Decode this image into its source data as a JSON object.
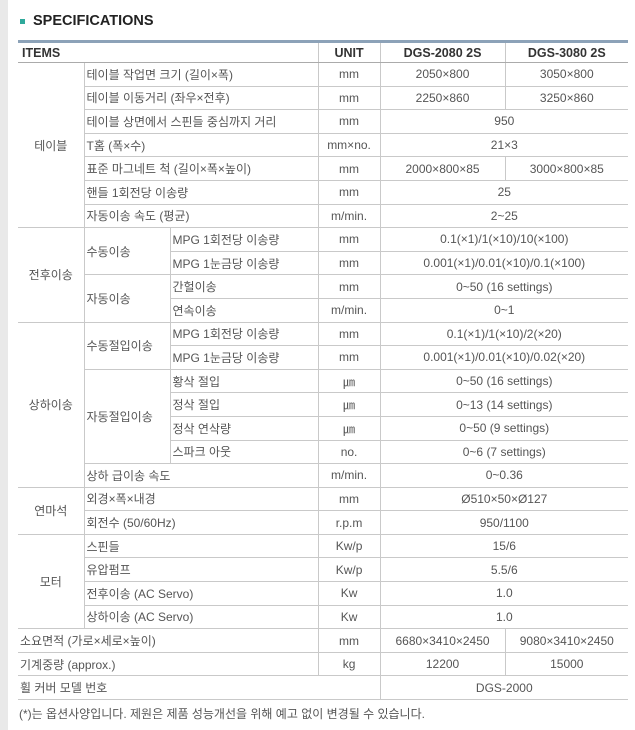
{
  "page": {
    "title": "SPECIFICATIONS",
    "footnote": "(*)는 옵션사양입니다. 제원은 제품 성능개선을 위해 예고 없이 변경될 수 있습니다.",
    "colors": {
      "bullet": "#2fa99b",
      "rule": "#8ca2b8",
      "border": "#c9c9c9",
      "text": "#555555"
    }
  },
  "table": {
    "header": {
      "items": "ITEMS",
      "unit": "UNIT",
      "model1": "DGS-2080 2S",
      "model2": "DGS-3080 2S"
    },
    "rows": [
      {
        "cells": [
          {
            "t": "테이블",
            "c": "g",
            "rs": 7
          },
          {
            "t": "테이블 작업면 크기 (길이×폭)",
            "c": "i",
            "cs": 2
          },
          {
            "t": "mm",
            "c": "u"
          },
          {
            "t": "2050×800",
            "c": "v"
          },
          {
            "t": "3050×800",
            "c": "v"
          }
        ]
      },
      {
        "cells": [
          {
            "t": "테이블 이동거리 (좌우×전후)",
            "c": "i",
            "cs": 2
          },
          {
            "t": "mm",
            "c": "u"
          },
          {
            "t": "2250×860",
            "c": "v"
          },
          {
            "t": "3250×860",
            "c": "v"
          }
        ]
      },
      {
        "cells": [
          {
            "t": "테이블 상면에서 스핀들 중심까지 거리",
            "c": "i",
            "cs": 2
          },
          {
            "t": "mm",
            "c": "u"
          },
          {
            "t": "950",
            "c": "v",
            "cs": 2
          }
        ]
      },
      {
        "cells": [
          {
            "t": "T홈 (폭×수)",
            "c": "i",
            "cs": 2
          },
          {
            "t": "mm×no.",
            "c": "u"
          },
          {
            "t": "21×3",
            "c": "v",
            "cs": 2
          }
        ]
      },
      {
        "cells": [
          {
            "t": "표준 마그네트 척 (길이×폭×높이)",
            "c": "i",
            "cs": 2
          },
          {
            "t": "mm",
            "c": "u"
          },
          {
            "t": "2000×800×85",
            "c": "v"
          },
          {
            "t": "3000×800×85",
            "c": "v"
          }
        ]
      },
      {
        "cells": [
          {
            "t": "핸들 1회전당 이송량",
            "c": "i",
            "cs": 2
          },
          {
            "t": "mm",
            "c": "u"
          },
          {
            "t": "25",
            "c": "v",
            "cs": 2
          }
        ]
      },
      {
        "cells": [
          {
            "t": "자동이송 속도 (평균)",
            "c": "i",
            "cs": 2
          },
          {
            "t": "m/min.",
            "c": "u"
          },
          {
            "t": "2~25",
            "c": "v",
            "cs": 2
          }
        ]
      },
      {
        "cells": [
          {
            "t": "전후이송",
            "c": "g",
            "rs": 4
          },
          {
            "t": "수동이송",
            "c": "s",
            "rs": 2
          },
          {
            "t": "MPG 1회전당 이송량",
            "c": "i"
          },
          {
            "t": "mm",
            "c": "u"
          },
          {
            "t": "0.1(×1)/1(×10)/10(×100)",
            "c": "v",
            "cs": 2
          }
        ]
      },
      {
        "cells": [
          {
            "t": "MPG 1눈금당 이송량",
            "c": "i"
          },
          {
            "t": "mm",
            "c": "u"
          },
          {
            "t": "0.001(×1)/0.01(×10)/0.1(×100)",
            "c": "v",
            "cs": 2
          }
        ]
      },
      {
        "cells": [
          {
            "t": "자동이송",
            "c": "s",
            "rs": 2
          },
          {
            "t": "간헐이송",
            "c": "i"
          },
          {
            "t": "mm",
            "c": "u"
          },
          {
            "t": "0~50 (16 settings)",
            "c": "v",
            "cs": 2
          }
        ]
      },
      {
        "cells": [
          {
            "t": "연속이송",
            "c": "i"
          },
          {
            "t": "m/min.",
            "c": "u"
          },
          {
            "t": "0~1",
            "c": "v",
            "cs": 2
          }
        ]
      },
      {
        "cells": [
          {
            "t": "상하이송",
            "c": "g",
            "rs": 7
          },
          {
            "t": "수동절입이송",
            "c": "s",
            "rs": 2
          },
          {
            "t": "MPG 1회전당 이송량",
            "c": "i"
          },
          {
            "t": "mm",
            "c": "u"
          },
          {
            "t": "0.1(×1)/1(×10)/2(×20)",
            "c": "v",
            "cs": 2
          }
        ]
      },
      {
        "cells": [
          {
            "t": "MPG 1눈금당 이송량",
            "c": "i"
          },
          {
            "t": "mm",
            "c": "u"
          },
          {
            "t": "0.001(×1)/0.01(×10)/0.02(×20)",
            "c": "v",
            "cs": 2
          }
        ]
      },
      {
        "cells": [
          {
            "t": "자동절입이송",
            "c": "s",
            "rs": 4
          },
          {
            "t": "황삭 절입",
            "c": "i"
          },
          {
            "t": "㎛",
            "c": "u"
          },
          {
            "t": "0~50 (16 settings)",
            "c": "v",
            "cs": 2
          }
        ]
      },
      {
        "cells": [
          {
            "t": "정삭 절입",
            "c": "i"
          },
          {
            "t": "㎛",
            "c": "u"
          },
          {
            "t": "0~13 (14 settings)",
            "c": "v",
            "cs": 2
          }
        ]
      },
      {
        "cells": [
          {
            "t": "정삭 연삭량",
            "c": "i"
          },
          {
            "t": "㎛",
            "c": "u"
          },
          {
            "t": "0~50 (9 settings)",
            "c": "v",
            "cs": 2
          }
        ]
      },
      {
        "cells": [
          {
            "t": "스파크 아웃",
            "c": "i"
          },
          {
            "t": "no.",
            "c": "u"
          },
          {
            "t": "0~6 (7 settings)",
            "c": "v",
            "cs": 2
          }
        ]
      },
      {
        "cells": [
          {
            "t": "상하 급이송 속도",
            "c": "i",
            "cs": 2
          },
          {
            "t": "m/min.",
            "c": "u"
          },
          {
            "t": "0~0.36",
            "c": "v",
            "cs": 2
          }
        ]
      },
      {
        "cells": [
          {
            "t": "연마석",
            "c": "g",
            "rs": 2
          },
          {
            "t": "외경×폭×내경",
            "c": "i",
            "cs": 2
          },
          {
            "t": "mm",
            "c": "u"
          },
          {
            "t": "Ø510×50×Ø127",
            "c": "v",
            "cs": 2
          }
        ]
      },
      {
        "cells": [
          {
            "t": "회전수 (50/60Hz)",
            "c": "i",
            "cs": 2
          },
          {
            "t": "r.p.m",
            "c": "u"
          },
          {
            "t": "950/1100",
            "c": "v",
            "cs": 2
          }
        ]
      },
      {
        "cells": [
          {
            "t": "모터",
            "c": "g",
            "rs": 4
          },
          {
            "t": "스핀들",
            "c": "i",
            "cs": 2
          },
          {
            "t": "Kw/p",
            "c": "u"
          },
          {
            "t": "15/6",
            "c": "v",
            "cs": 2
          }
        ]
      },
      {
        "cells": [
          {
            "t": "유압펌프",
            "c": "i",
            "cs": 2
          },
          {
            "t": "Kw/p",
            "c": "u"
          },
          {
            "t": "5.5/6",
            "c": "v",
            "cs": 2
          }
        ]
      },
      {
        "cells": [
          {
            "t": "전후이송 (AC Servo)",
            "c": "i",
            "cs": 2
          },
          {
            "t": "Kw",
            "c": "u"
          },
          {
            "t": "1.0",
            "c": "v",
            "cs": 2
          }
        ]
      },
      {
        "cells": [
          {
            "t": "상하이송 (AC Servo)",
            "c": "i",
            "cs": 2
          },
          {
            "t": "Kw",
            "c": "u"
          },
          {
            "t": "1.0",
            "c": "v",
            "cs": 2
          }
        ]
      },
      {
        "cells": [
          {
            "t": "소요면적 (가로×세로×높이)",
            "c": "f",
            "cs": 3
          },
          {
            "t": "mm",
            "c": "u"
          },
          {
            "t": "6680×3410×2450",
            "c": "v"
          },
          {
            "t": "9080×3410×2450",
            "c": "v"
          }
        ]
      },
      {
        "cells": [
          {
            "t": "기계중량 (approx.)",
            "c": "f",
            "cs": 3
          },
          {
            "t": "kg",
            "c": "u"
          },
          {
            "t": "12200",
            "c": "v"
          },
          {
            "t": "15000",
            "c": "v"
          }
        ]
      },
      {
        "cells": [
          {
            "t": "휠 커버 모델 번호",
            "c": "f",
            "cs": 4
          },
          {
            "t": "DGS-2000",
            "c": "v",
            "cs": 2
          }
        ]
      }
    ]
  }
}
